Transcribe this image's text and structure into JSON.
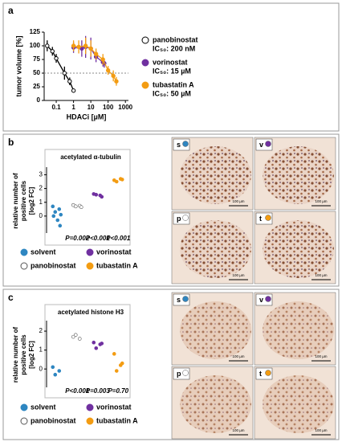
{
  "panels": [
    "a",
    "b",
    "c"
  ],
  "chart_data": [
    {
      "type": "line",
      "ylabel": "tumor volume [%]",
      "xlabel": "HDACi [µM]",
      "xscale": "log",
      "xlim": [
        0.02,
        1500
      ],
      "xticks": [
        0.1,
        1,
        10,
        100,
        1000
      ],
      "ylim": [
        0,
        125
      ],
      "yticks": [
        0,
        25,
        50,
        75,
        100,
        125
      ],
      "reference_line": 50,
      "series": [
        {
          "name": "panobinostat",
          "note": "IC₅₀: 200 nM",
          "color": "#000000",
          "marker": "open",
          "x": [
            0.03,
            0.06,
            0.1,
            0.3,
            0.6,
            1
          ],
          "values": [
            100,
            90,
            77,
            50,
            35,
            18
          ],
          "errors": [
            10,
            8,
            8,
            12,
            7,
            0
          ]
        },
        {
          "name": "vorinostat",
          "note": "IC₅₀: 15 µM",
          "color": "#7030a0",
          "marker": "filled",
          "x": [
            1,
            3,
            5,
            10,
            20,
            50,
            60
          ],
          "values": [
            97,
            95,
            98,
            95,
            80,
            70,
            68
          ],
          "errors": [
            10,
            15,
            20,
            20,
            10,
            8,
            8
          ]
        },
        {
          "name": "tubastatin A",
          "note": "IC₅₀: 50 µM",
          "color": "#f39c12",
          "marker": "filled",
          "x": [
            1,
            2,
            5,
            10,
            20,
            50,
            100,
            200,
            300
          ],
          "values": [
            100,
            98,
            100,
            95,
            85,
            75,
            55,
            45,
            35
          ],
          "errors": [
            10,
            12,
            15,
            15,
            10,
            10,
            8,
            10,
            8
          ]
        }
      ]
    },
    {
      "type": "dot",
      "title": "acetylated α-tubulin",
      "ylabel": [
        "relative number of",
        "positive cells",
        "[log2 FC]"
      ],
      "ylim": [
        -1,
        3.2
      ],
      "yticks": [
        0,
        1,
        2,
        3
      ],
      "p_values": [
        "P=0.002",
        "P<0.001",
        "P<0.001"
      ],
      "series": [
        {
          "name": "solvent",
          "color": "#2e86c1",
          "values": [
            0.7,
            0.5,
            0.3,
            0.1,
            0.0,
            -0.3,
            -0.7
          ]
        },
        {
          "name": "panobinostat",
          "color": "#ffffff",
          "values": [
            0.8,
            0.75,
            0.7,
            0.65
          ]
        },
        {
          "name": "vorinostat",
          "color": "#7030a0",
          "values": [
            1.6,
            1.5,
            1.55,
            1.4
          ]
        },
        {
          "name": "tubastatin A",
          "color": "#f39c12",
          "values": [
            2.6,
            2.7,
            2.5,
            2.65
          ]
        }
      ]
    },
    {
      "type": "dot",
      "title": "acetylated histone H3",
      "ylabel": [
        "relative number of",
        "positive cells",
        "[log2 FC]"
      ],
      "ylim": [
        -0.8,
        2.3
      ],
      "yticks": [
        0,
        1,
        2
      ],
      "p_values": [
        "P<0.001",
        "P=0.003",
        "P=0.70"
      ],
      "series": [
        {
          "name": "solvent",
          "color": "#2e86c1",
          "values": [
            0.1,
            -0.1,
            -0.3
          ]
        },
        {
          "name": "panobinostat",
          "color": "#ffffff",
          "values": [
            1.7,
            1.6,
            1.8
          ]
        },
        {
          "name": "vorinostat",
          "color": "#7030a0",
          "values": [
            1.4,
            1.3,
            1.1,
            1.35
          ]
        },
        {
          "name": "tubastatin A",
          "color": "#f39c12",
          "values": [
            0.8,
            0.2,
            -0.1,
            0.3
          ]
        }
      ]
    }
  ],
  "images": [
    {
      "label": "s",
      "scale": "100 µm"
    },
    {
      "label": "v",
      "scale": "100 µm"
    },
    {
      "label": "p",
      "scale": "100 µm"
    },
    {
      "label": "t",
      "scale": "100 µm"
    },
    {
      "label": "s",
      "scale": "100 µm"
    },
    {
      "label": "v",
      "scale": "100 µm"
    },
    {
      "label": "p",
      "scale": "100 µm"
    },
    {
      "label": "t",
      "scale": "100 µm"
    }
  ]
}
